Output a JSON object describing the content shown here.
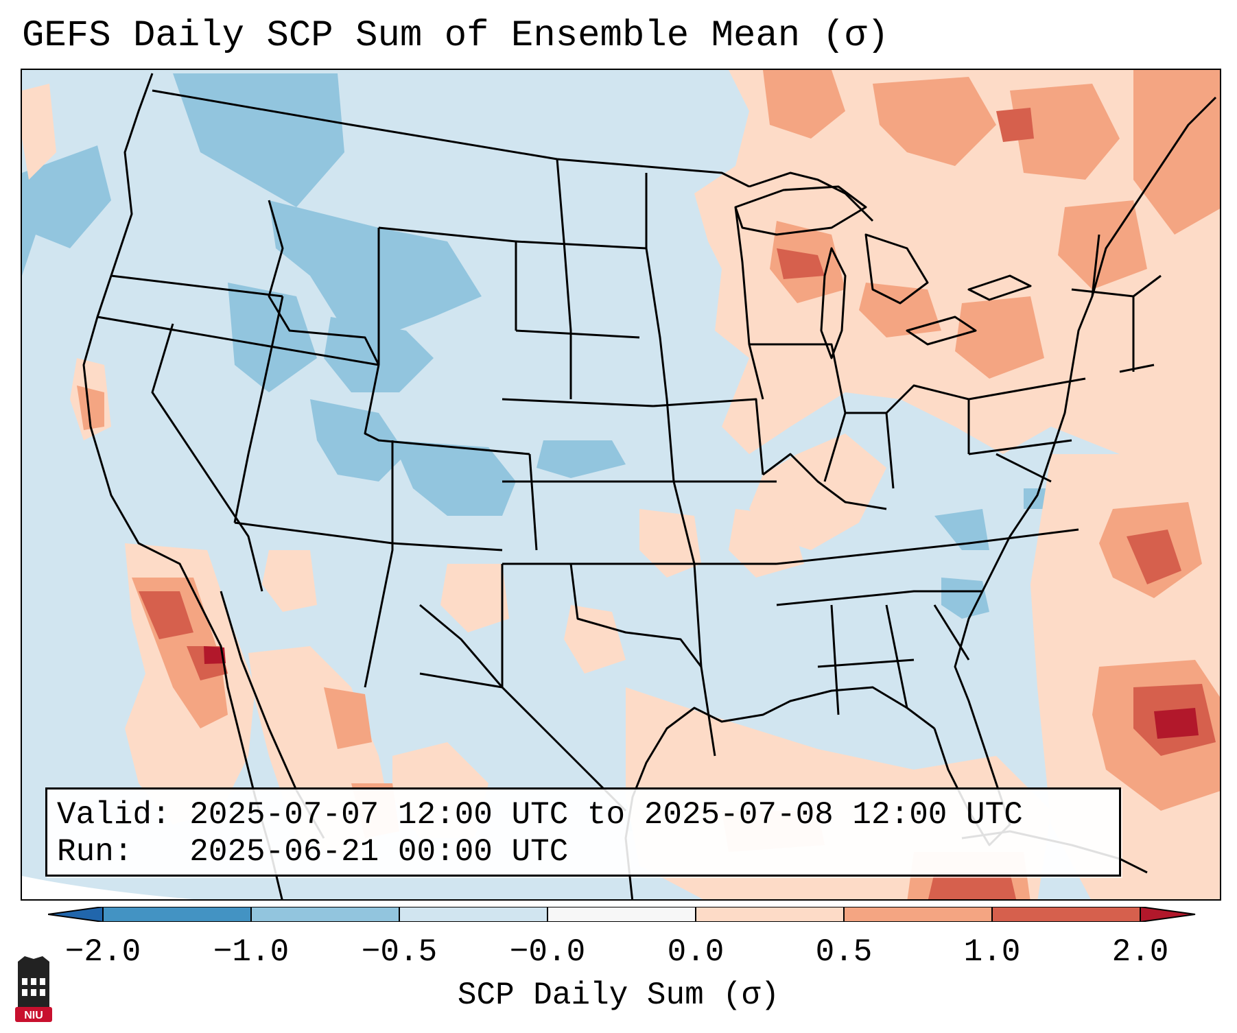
{
  "title": "GEFS Daily SCP Sum of Ensemble Mean (σ)",
  "valid_line": "Valid: 2025-07-07 12:00 UTC to 2025-07-08 12:00 UTC",
  "run_line": "Run:   2025-06-21 00:00 UTC",
  "colorbar": {
    "label": "SCP Daily Sum (σ)",
    "ticks": [
      "−2.0",
      "−1.0",
      "−0.5",
      "−0.0",
      "0.0",
      "0.5",
      "1.0",
      "2.0"
    ],
    "colors": [
      "#4393c3",
      "#92c5de",
      "#d1e5f0",
      "#f7f7f7",
      "#fddbc7",
      "#f4a582",
      "#d6604d"
    ],
    "extend_low": "#2166ac",
    "extend_high": "#b2182b"
  },
  "logo": {
    "text": "NIU",
    "color": "#c8102e"
  }
}
